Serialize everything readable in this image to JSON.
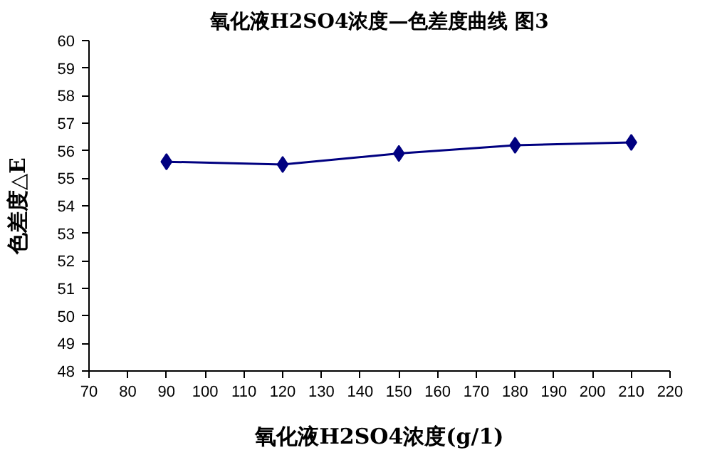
{
  "chart_data": {
    "type": "line",
    "title": "氧化液H2SO4浓度—色差度曲线 图3",
    "xlabel": "氧化液H2SO4浓度(g/1)",
    "ylabel": "色差度△E",
    "x": [
      90,
      120,
      150,
      180,
      210
    ],
    "series": [
      {
        "color": "#000080",
        "values": [
          55.6,
          55.5,
          55.9,
          56.2,
          56.3
        ]
      }
    ],
    "xlim": [
      70,
      220
    ],
    "xticks": [
      70,
      80,
      90,
      100,
      110,
      120,
      130,
      140,
      150,
      160,
      170,
      180,
      190,
      200,
      210,
      220
    ],
    "ylim": [
      48,
      60
    ],
    "yticks": [
      48,
      49,
      50,
      51,
      52,
      53,
      54,
      55,
      56,
      57,
      58,
      59,
      60
    ],
    "grid": false,
    "marker": "diamond",
    "line_style": "solid"
  }
}
